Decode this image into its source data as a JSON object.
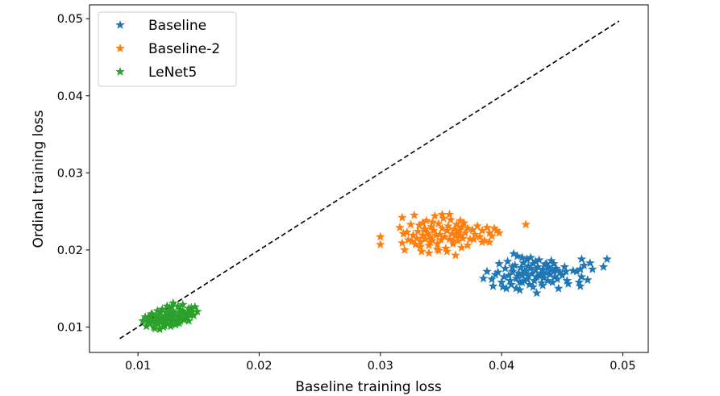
{
  "chart_data": {
    "type": "scatter",
    "title": "",
    "xlabel": "Baseline training loss",
    "ylabel": "Ordinal training loss",
    "xlim": [
      0.006,
      0.0521
    ],
    "ylim": [
      0.0067,
      0.0518
    ],
    "xticks": [
      0.01,
      0.02,
      0.03,
      0.04,
      0.05
    ],
    "xtick_labels": [
      "0.01",
      "0.02",
      "0.03",
      "0.04",
      "0.05"
    ],
    "yticks": [
      0.01,
      0.02,
      0.03,
      0.04,
      0.05
    ],
    "ytick_labels": [
      "0.01",
      "0.02",
      "0.03",
      "0.04",
      "0.05"
    ],
    "grid": false,
    "legend_position": "top-left",
    "marker": "star",
    "reference_line": {
      "style": "dashed",
      "color": "#000000",
      "x": [
        0.0085,
        0.0497
      ],
      "y": [
        0.0085,
        0.0497
      ]
    },
    "series": [
      {
        "name": "Baseline",
        "color": "#1f77b4",
        "points": [
          [
            0.0388,
            0.0172
          ],
          [
            0.0392,
            0.0162
          ],
          [
            0.0397,
            0.0171
          ],
          [
            0.04,
            0.0158
          ],
          [
            0.0403,
            0.0176
          ],
          [
            0.0405,
            0.0185
          ],
          [
            0.0406,
            0.0167
          ],
          [
            0.0408,
            0.0155
          ],
          [
            0.0409,
            0.0172
          ],
          [
            0.0411,
            0.018
          ],
          [
            0.0412,
            0.0163
          ],
          [
            0.0413,
            0.0192
          ],
          [
            0.0414,
            0.017
          ],
          [
            0.0415,
            0.0158
          ],
          [
            0.0416,
            0.0177
          ],
          [
            0.0417,
            0.0167
          ],
          [
            0.0418,
            0.0183
          ],
          [
            0.0419,
            0.016
          ],
          [
            0.042,
            0.0173
          ],
          [
            0.0421,
            0.0188
          ],
          [
            0.0422,
            0.0166
          ],
          [
            0.0423,
            0.0155
          ],
          [
            0.0424,
            0.0176
          ],
          [
            0.0425,
            0.0169
          ],
          [
            0.0426,
            0.0182
          ],
          [
            0.0427,
            0.016
          ],
          [
            0.0428,
            0.0174
          ],
          [
            0.0429,
            0.0165
          ],
          [
            0.043,
            0.0178
          ],
          [
            0.0431,
            0.0187
          ],
          [
            0.0432,
            0.0168
          ],
          [
            0.0433,
            0.0157
          ],
          [
            0.0434,
            0.0175
          ],
          [
            0.0435,
            0.0164
          ],
          [
            0.0436,
            0.0181
          ],
          [
            0.0437,
            0.017
          ],
          [
            0.0438,
            0.016
          ],
          [
            0.0439,
            0.0177
          ],
          [
            0.044,
            0.0168
          ],
          [
            0.0441,
            0.0186
          ],
          [
            0.0442,
            0.0158
          ],
          [
            0.0443,
            0.0172
          ],
          [
            0.0444,
            0.0165
          ],
          [
            0.0445,
            0.0176
          ],
          [
            0.0446,
            0.0162
          ],
          [
            0.0447,
            0.015
          ],
          [
            0.0448,
            0.0171
          ],
          [
            0.045,
            0.0167
          ],
          [
            0.0452,
            0.0178
          ],
          [
            0.0454,
            0.016
          ],
          [
            0.0398,
            0.0182
          ],
          [
            0.0402,
            0.0165
          ],
          [
            0.041,
            0.0195
          ],
          [
            0.0407,
            0.016
          ],
          [
            0.0415,
            0.0148
          ],
          [
            0.0419,
            0.0172
          ],
          [
            0.0424,
            0.019
          ],
          [
            0.0428,
            0.0185
          ],
          [
            0.0433,
            0.017
          ],
          [
            0.0438,
            0.0178
          ],
          [
            0.0443,
            0.0182
          ],
          [
            0.0395,
            0.0168
          ],
          [
            0.0401,
            0.0152
          ],
          [
            0.0412,
            0.015
          ],
          [
            0.0426,
            0.0152
          ],
          [
            0.0434,
            0.0154
          ],
          [
            0.044,
            0.0175
          ],
          [
            0.0417,
            0.019
          ],
          [
            0.0421,
            0.0162
          ],
          [
            0.0409,
            0.0178
          ],
          [
            0.0385,
            0.0163
          ],
          [
            0.0393,
            0.0153
          ],
          [
            0.0404,
            0.015
          ],
          [
            0.0429,
            0.0144
          ],
          [
            0.0446,
            0.0173
          ],
          [
            0.0453,
            0.0172
          ],
          [
            0.0455,
            0.0156
          ],
          [
            0.0459,
            0.0173
          ],
          [
            0.0462,
            0.0172
          ],
          [
            0.0464,
            0.0158
          ],
          [
            0.0465,
            0.0175
          ],
          [
            0.0465,
            0.0153
          ],
          [
            0.0466,
            0.0188
          ],
          [
            0.0466,
            0.0165
          ],
          [
            0.0468,
            0.018
          ],
          [
            0.0471,
            0.0161
          ],
          [
            0.0473,
            0.0183
          ],
          [
            0.0475,
            0.0175
          ],
          [
            0.0484,
            0.0178
          ],
          [
            0.0487,
            0.0188
          ],
          [
            0.0417,
            0.0158
          ],
          [
            0.0431,
            0.0166
          ],
          [
            0.0437,
            0.0182
          ],
          [
            0.0422,
            0.0179
          ],
          [
            0.0413,
            0.0166
          ]
        ]
      },
      {
        "name": "Baseline-2",
        "color": "#ff7f0e",
        "points": [
          [
            0.03,
            0.0217
          ],
          [
            0.03,
            0.0207
          ],
          [
            0.0316,
            0.0229
          ],
          [
            0.0319,
            0.0221
          ],
          [
            0.032,
            0.02
          ],
          [
            0.0322,
            0.0223
          ],
          [
            0.0323,
            0.0213
          ],
          [
            0.0325,
            0.0233
          ],
          [
            0.0327,
            0.0219
          ],
          [
            0.0328,
            0.0245
          ],
          [
            0.0329,
            0.0207
          ],
          [
            0.033,
            0.0215
          ],
          [
            0.0331,
            0.0224
          ],
          [
            0.0332,
            0.0232
          ],
          [
            0.0333,
            0.0211
          ],
          [
            0.0334,
            0.0198
          ],
          [
            0.0335,
            0.0219
          ],
          [
            0.0336,
            0.0227
          ],
          [
            0.0337,
            0.0214
          ],
          [
            0.0338,
            0.0238
          ],
          [
            0.0339,
            0.0222
          ],
          [
            0.034,
            0.0206
          ],
          [
            0.0341,
            0.0217
          ],
          [
            0.0342,
            0.023
          ],
          [
            0.0343,
            0.0212
          ],
          [
            0.0344,
            0.0225
          ],
          [
            0.0345,
            0.0244
          ],
          [
            0.0346,
            0.0219
          ],
          [
            0.0347,
            0.0208
          ],
          [
            0.0348,
            0.0234
          ],
          [
            0.0349,
            0.022
          ],
          [
            0.035,
            0.0213
          ],
          [
            0.0351,
            0.0228
          ],
          [
            0.0352,
            0.0241
          ],
          [
            0.0353,
            0.0217
          ],
          [
            0.0354,
            0.0202
          ],
          [
            0.0355,
            0.0225
          ],
          [
            0.0356,
            0.0231
          ],
          [
            0.0357,
            0.0214
          ],
          [
            0.0358,
            0.0239
          ],
          [
            0.0359,
            0.0221
          ],
          [
            0.036,
            0.0208
          ],
          [
            0.0361,
            0.0227
          ],
          [
            0.0362,
            0.0218
          ],
          [
            0.0363,
            0.0233
          ],
          [
            0.0364,
            0.0212
          ],
          [
            0.0365,
            0.0225
          ],
          [
            0.0366,
            0.0219
          ],
          [
            0.0367,
            0.023
          ],
          [
            0.0368,
            0.0215
          ],
          [
            0.037,
            0.0222
          ],
          [
            0.0372,
            0.0228
          ],
          [
            0.0374,
            0.0214
          ],
          [
            0.0376,
            0.0226
          ],
          [
            0.0378,
            0.022
          ],
          [
            0.038,
            0.0231
          ],
          [
            0.0382,
            0.0217
          ],
          [
            0.0384,
            0.0225
          ],
          [
            0.0386,
            0.0212
          ],
          [
            0.0388,
            0.0229
          ],
          [
            0.039,
            0.0222
          ],
          [
            0.0392,
            0.0218
          ],
          [
            0.0394,
            0.0228
          ],
          [
            0.0396,
            0.0225
          ],
          [
            0.0398,
            0.0222
          ],
          [
            0.0333,
            0.0204
          ],
          [
            0.034,
            0.0196
          ],
          [
            0.0347,
            0.0201
          ],
          [
            0.0355,
            0.0198
          ],
          [
            0.0362,
            0.0193
          ],
          [
            0.0367,
            0.0203
          ],
          [
            0.0326,
            0.0211
          ],
          [
            0.0343,
            0.0236
          ],
          [
            0.0351,
            0.0246
          ],
          [
            0.0357,
            0.0246
          ],
          [
            0.0369,
            0.0235
          ],
          [
            0.0377,
            0.0214
          ],
          [
            0.0384,
            0.021
          ],
          [
            0.0318,
            0.0242
          ],
          [
            0.0337,
            0.0227
          ],
          [
            0.036,
            0.0211
          ],
          [
            0.0372,
            0.0206
          ],
          [
            0.0348,
            0.0199
          ],
          [
            0.0341,
            0.021
          ],
          [
            0.0366,
            0.0238
          ],
          [
            0.0318,
            0.0209
          ],
          [
            0.042,
            0.0233
          ],
          [
            0.039,
            0.021
          ],
          [
            0.0335,
            0.0235
          ],
          [
            0.0363,
            0.0221
          ]
        ]
      },
      {
        "name": "LeNet5",
        "color": "#2ca02c",
        "points": [
          [
            0.0104,
            0.0108
          ],
          [
            0.0106,
            0.0113
          ],
          [
            0.0107,
            0.0101
          ],
          [
            0.0108,
            0.0107
          ],
          [
            0.0109,
            0.0113
          ],
          [
            0.011,
            0.0104
          ],
          [
            0.0111,
            0.011
          ],
          [
            0.0112,
            0.0116
          ],
          [
            0.0113,
            0.01
          ],
          [
            0.0114,
            0.0108
          ],
          [
            0.0115,
            0.0113
          ],
          [
            0.0116,
            0.0104
          ],
          [
            0.0117,
            0.0111
          ],
          [
            0.0118,
            0.0118
          ],
          [
            0.0119,
            0.0106
          ],
          [
            0.012,
            0.0112
          ],
          [
            0.0121,
            0.01
          ],
          [
            0.0122,
            0.0109
          ],
          [
            0.0123,
            0.0115
          ],
          [
            0.0124,
            0.0104
          ],
          [
            0.0125,
            0.0111
          ],
          [
            0.0126,
            0.0118
          ],
          [
            0.0127,
            0.0107
          ],
          [
            0.0128,
            0.0113
          ],
          [
            0.0129,
            0.012
          ],
          [
            0.013,
            0.0109
          ],
          [
            0.0131,
            0.0115
          ],
          [
            0.0132,
            0.0105
          ],
          [
            0.0133,
            0.0112
          ],
          [
            0.0134,
            0.0119
          ],
          [
            0.0135,
            0.0108
          ],
          [
            0.0136,
            0.0114
          ],
          [
            0.0137,
            0.0121
          ],
          [
            0.0138,
            0.011
          ],
          [
            0.0139,
            0.0116
          ],
          [
            0.014,
            0.0113
          ],
          [
            0.0141,
            0.0119
          ],
          [
            0.0142,
            0.0124
          ],
          [
            0.0143,
            0.0115
          ],
          [
            0.0145,
            0.012
          ],
          [
            0.0147,
            0.0126
          ],
          [
            0.0114,
            0.0098
          ],
          [
            0.0118,
            0.0097
          ],
          [
            0.0122,
            0.0102
          ],
          [
            0.0127,
            0.0101
          ],
          [
            0.0131,
            0.0103
          ],
          [
            0.0126,
            0.0125
          ],
          [
            0.0129,
            0.0131
          ],
          [
            0.0133,
            0.0127
          ],
          [
            0.0137,
            0.0129
          ],
          [
            0.0111,
            0.0117
          ],
          [
            0.0116,
            0.0121
          ],
          [
            0.012,
            0.0123
          ],
          [
            0.0124,
            0.0127
          ],
          [
            0.0128,
            0.0126
          ],
          [
            0.0134,
            0.0105
          ],
          [
            0.0138,
            0.0109
          ],
          [
            0.0142,
            0.0108
          ],
          [
            0.0146,
            0.0115
          ],
          [
            0.0149,
            0.012
          ],
          [
            0.0108,
            0.0111
          ],
          [
            0.0112,
            0.0106
          ],
          [
            0.0117,
            0.0115
          ],
          [
            0.0121,
            0.0108
          ],
          [
            0.0125,
            0.0114
          ],
          [
            0.013,
            0.0118
          ],
          [
            0.0135,
            0.0122
          ],
          [
            0.0139,
            0.0112
          ],
          [
            0.0144,
            0.0125
          ],
          [
            0.0123,
            0.0119
          ]
        ]
      }
    ]
  }
}
